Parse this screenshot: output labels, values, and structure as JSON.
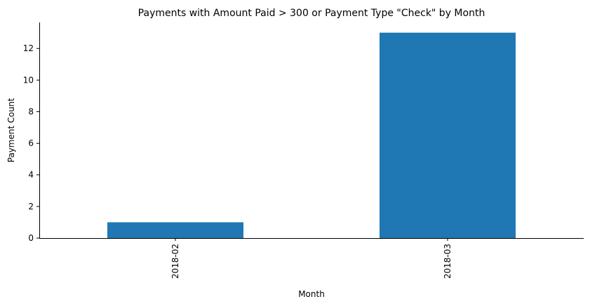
{
  "chart_data": {
    "type": "bar",
    "title": "Payments with Amount Paid > 300 or Payment Type \"Check\" by Month",
    "xlabel": "Month",
    "ylabel": "Payment Count",
    "categories": [
      "2018-02",
      "2018-03"
    ],
    "values": [
      1,
      13
    ],
    "ylim": [
      0,
      13.65
    ],
    "yticks": [
      0,
      2,
      4,
      6,
      8,
      10,
      12
    ],
    "bar_color": "#1f77b4",
    "grid": false,
    "legend": "none"
  }
}
